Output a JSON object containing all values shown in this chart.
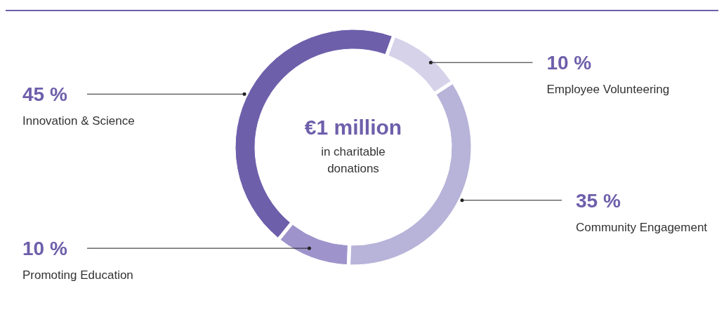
{
  "chart_data": {
    "type": "donut",
    "categories": [
      "Employee Volunteering",
      "Community Engagement",
      "Promoting Education",
      "Innovation & Science"
    ],
    "values": [
      10,
      35,
      10,
      45
    ],
    "colors": [
      "#d6d2ea",
      "#b8b3d9",
      "#9e94cb",
      "#6e5fab"
    ],
    "value_labels": [
      "10 %",
      "35 %",
      "10 %",
      "45 %"
    ],
    "annotations": [
      "€1 million",
      "in charitable donations"
    ]
  }
}
